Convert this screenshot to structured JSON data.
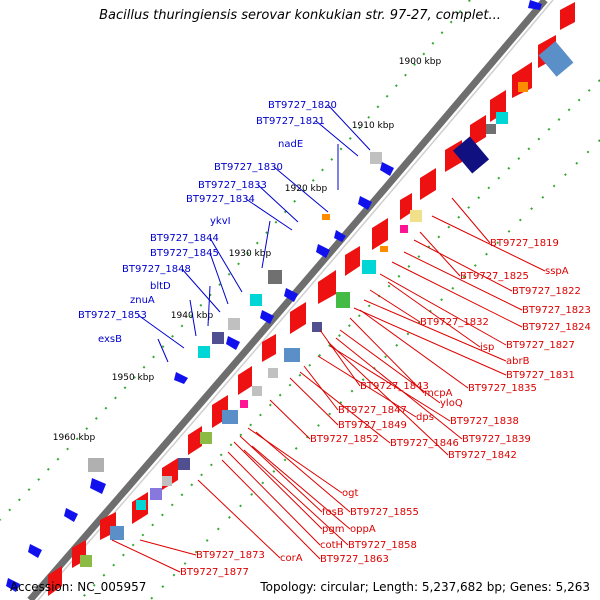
{
  "title": "Bacillus thuringiensis serovar konkukian str. 97-27, complet...",
  "footer": {
    "accession": "Accession: NC_005957",
    "summary": "Topology: circular; Length: 5,237,682 bp; Genes: 5,263"
  },
  "colors": {
    "backbone": "#808080",
    "forward_gene": "#ee1111",
    "cds_blue": "#1111ee",
    "label_left": "#0000cc",
    "label_right": "#dd0000",
    "tick": "#228822"
  },
  "ticks": [
    {
      "label": "1900 kbp"
    },
    {
      "label": "1910 kbp"
    },
    {
      "label": "1920 kbp"
    },
    {
      "label": "1930 kbp"
    },
    {
      "label": "1940 kbp"
    },
    {
      "label": "1950 kbp"
    },
    {
      "label": "1960 kbp"
    }
  ],
  "left_labels": [
    {
      "text": "BT9727_1820"
    },
    {
      "text": "BT9727_1821"
    },
    {
      "text": "nadE"
    },
    {
      "text": "BT9727_1830"
    },
    {
      "text": "BT9727_1833"
    },
    {
      "text": "BT9727_1834"
    },
    {
      "text": "ykvI"
    },
    {
      "text": "BT9727_1844"
    },
    {
      "text": "BT9727_1845"
    },
    {
      "text": "BT9727_1848"
    },
    {
      "text": "bltD"
    },
    {
      "text": "znuA"
    },
    {
      "text": "BT9727_1853"
    },
    {
      "text": "exsB"
    }
  ],
  "right_labels": [
    {
      "text": "BT9727_1819"
    },
    {
      "text": "sspA"
    },
    {
      "text": "BT9727_1825"
    },
    {
      "text": "BT9727_1822"
    },
    {
      "text": "BT9727_1823"
    },
    {
      "text": "BT9727_1824"
    },
    {
      "text": "BT9727_1832"
    },
    {
      "text": "isp"
    },
    {
      "text": "BT9727_1827"
    },
    {
      "text": "abrB"
    },
    {
      "text": "BT9727_1831"
    },
    {
      "text": "BT9727_1843"
    },
    {
      "text": "mcpA"
    },
    {
      "text": "BT9727_1835"
    },
    {
      "text": "yloQ"
    },
    {
      "text": "BT9727_1847"
    },
    {
      "text": "dps"
    },
    {
      "text": "BT9727_1838"
    },
    {
      "text": "BT9727_1849"
    },
    {
      "text": "BT9727_1852"
    },
    {
      "text": "BT9727_1846"
    },
    {
      "text": "BT9727_1839"
    },
    {
      "text": "BT9727_1842"
    },
    {
      "text": "ogt"
    },
    {
      "text": "fosB"
    },
    {
      "text": "BT9727_1855"
    },
    {
      "text": "pgm"
    },
    {
      "text": "oppA"
    },
    {
      "text": "cotH"
    },
    {
      "text": "BT9727_1858"
    },
    {
      "text": "BT9727_1863"
    },
    {
      "text": "BT9727_1873"
    },
    {
      "text": "corA"
    },
    {
      "text": "BT9727_1877"
    }
  ]
}
